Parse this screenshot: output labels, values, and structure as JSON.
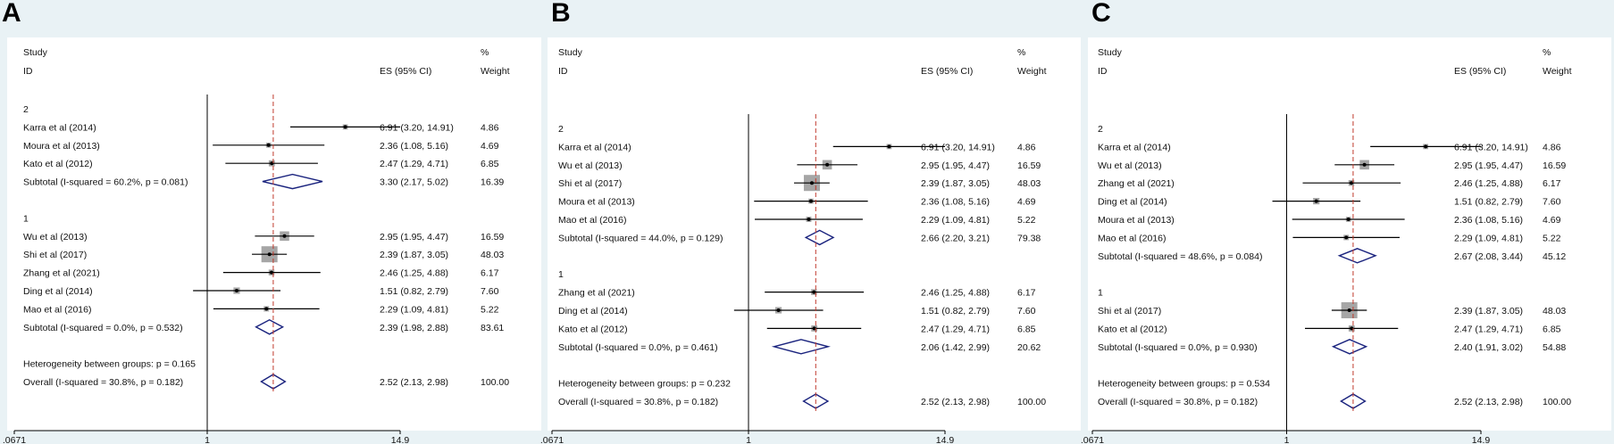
{
  "panels": [
    {
      "letter": "A",
      "header": {
        "study": "Study",
        "id": "ID",
        "es": "ES (95% CI)",
        "pct": "%",
        "weight": "Weight"
      },
      "rows": [
        {
          "kind": "group",
          "label": "2"
        },
        {
          "kind": "study",
          "label": "Karra et al (2014)",
          "es": 6.91,
          "lo": 3.2,
          "hi": 14.91,
          "text": "6.91 (3.20, 14.91)",
          "weight": "4.86",
          "w": 4.86
        },
        {
          "kind": "study",
          "label": "Moura et al (2013)",
          "es": 2.36,
          "lo": 1.08,
          "hi": 5.16,
          "text": "2.36 (1.08, 5.16)",
          "weight": "4.69",
          "w": 4.69
        },
        {
          "kind": "study",
          "label": "Kato et al (2012)",
          "es": 2.47,
          "lo": 1.29,
          "hi": 4.71,
          "text": "2.47 (1.29, 4.71)",
          "weight": "6.85",
          "w": 6.85
        },
        {
          "kind": "subtotal",
          "label": "Subtotal  (I-squared = 60.2%, p = 0.081)",
          "es": 3.3,
          "lo": 2.17,
          "hi": 5.02,
          "text": "3.30 (2.17, 5.02)",
          "weight": "16.39"
        },
        {
          "kind": "blank"
        },
        {
          "kind": "group",
          "label": "1"
        },
        {
          "kind": "study",
          "label": "Wu et al (2013)",
          "es": 2.95,
          "lo": 1.95,
          "hi": 4.47,
          "text": "2.95 (1.95, 4.47)",
          "weight": "16.59",
          "w": 16.59
        },
        {
          "kind": "study",
          "label": "Shi et al (2017)",
          "es": 2.39,
          "lo": 1.87,
          "hi": 3.05,
          "text": "2.39 (1.87, 3.05)",
          "weight": "48.03",
          "w": 48.03
        },
        {
          "kind": "study",
          "label": "Zhang et al (2021)",
          "es": 2.46,
          "lo": 1.25,
          "hi": 4.88,
          "text": "2.46 (1.25, 4.88)",
          "weight": "6.17",
          "w": 6.17
        },
        {
          "kind": "study",
          "label": "Ding et al (2014)",
          "es": 1.51,
          "lo": 0.82,
          "hi": 2.79,
          "text": "1.51 (0.82, 2.79)",
          "weight": "7.60",
          "w": 7.6
        },
        {
          "kind": "study",
          "label": "Mao et al (2016)",
          "es": 2.29,
          "lo": 1.09,
          "hi": 4.81,
          "text": "2.29 (1.09, 4.81)",
          "weight": "5.22",
          "w": 5.22
        },
        {
          "kind": "subtotal",
          "label": "Subtotal  (I-squared = 0.0%, p = 0.532)",
          "es": 2.39,
          "lo": 1.98,
          "hi": 2.88,
          "text": "2.39 (1.98, 2.88)",
          "weight": "83.61"
        },
        {
          "kind": "blank"
        },
        {
          "kind": "het",
          "label": "Heterogeneity between groups: p = 0.165"
        },
        {
          "kind": "overall",
          "label": "Overall  (I-squared = 30.8%, p = 0.182)",
          "es": 2.52,
          "lo": 2.13,
          "hi": 2.98,
          "text": "2.52 (2.13, 2.98)",
          "weight": "100.00"
        }
      ],
      "ticks": [
        ".0671",
        "1",
        "14.9"
      ]
    },
    {
      "letter": "B",
      "header": {
        "study": "Study",
        "id": "ID",
        "es": "ES (95% CI)",
        "pct": "%",
        "weight": "Weight"
      },
      "rows": [
        {
          "kind": "group",
          "label": "2"
        },
        {
          "kind": "study",
          "label": "Karra et al (2014)",
          "es": 6.91,
          "lo": 3.2,
          "hi": 14.91,
          "text": "6.91 (3.20, 14.91)",
          "weight": "4.86",
          "w": 4.86
        },
        {
          "kind": "study",
          "label": "Wu et al (2013)",
          "es": 2.95,
          "lo": 1.95,
          "hi": 4.47,
          "text": "2.95 (1.95, 4.47)",
          "weight": "16.59",
          "w": 16.59
        },
        {
          "kind": "study",
          "label": "Shi et al (2017)",
          "es": 2.39,
          "lo": 1.87,
          "hi": 3.05,
          "text": "2.39 (1.87, 3.05)",
          "weight": "48.03",
          "w": 48.03
        },
        {
          "kind": "study",
          "label": "Moura et al (2013)",
          "es": 2.36,
          "lo": 1.08,
          "hi": 5.16,
          "text": "2.36 (1.08, 5.16)",
          "weight": "4.69",
          "w": 4.69
        },
        {
          "kind": "study",
          "label": "Mao et al (2016)",
          "es": 2.29,
          "lo": 1.09,
          "hi": 4.81,
          "text": "2.29 (1.09, 4.81)",
          "weight": "5.22",
          "w": 5.22
        },
        {
          "kind": "subtotal",
          "label": "Subtotal  (I-squared = 44.0%, p = 0.129)",
          "es": 2.66,
          "lo": 2.2,
          "hi": 3.21,
          "text": "2.66 (2.20, 3.21)",
          "weight": "79.38"
        },
        {
          "kind": "blank"
        },
        {
          "kind": "group",
          "label": "1"
        },
        {
          "kind": "study",
          "label": "Zhang et al (2021)",
          "es": 2.46,
          "lo": 1.25,
          "hi": 4.88,
          "text": "2.46 (1.25, 4.88)",
          "weight": "6.17",
          "w": 6.17
        },
        {
          "kind": "study",
          "label": "Ding et al (2014)",
          "es": 1.51,
          "lo": 0.82,
          "hi": 2.79,
          "text": "1.51 (0.82, 2.79)",
          "weight": "7.60",
          "w": 7.6
        },
        {
          "kind": "study",
          "label": "Kato et al (2012)",
          "es": 2.47,
          "lo": 1.29,
          "hi": 4.71,
          "text": "2.47 (1.29, 4.71)",
          "weight": "6.85",
          "w": 6.85
        },
        {
          "kind": "subtotal",
          "label": "Subtotal  (I-squared = 0.0%, p = 0.461)",
          "es": 2.06,
          "lo": 1.42,
          "hi": 2.99,
          "text": "2.06 (1.42, 2.99)",
          "weight": "20.62"
        },
        {
          "kind": "blank"
        },
        {
          "kind": "het",
          "label": "Heterogeneity between groups: p = 0.232"
        },
        {
          "kind": "overall",
          "label": "Overall  (I-squared = 30.8%, p = 0.182)",
          "es": 2.52,
          "lo": 2.13,
          "hi": 2.98,
          "text": "2.52 (2.13, 2.98)",
          "weight": "100.00"
        }
      ],
      "ticks": [
        ".0671",
        "1",
        "14.9"
      ]
    },
    {
      "letter": "C",
      "header": {
        "study": "Study",
        "id": "ID",
        "es": "ES (95% CI)",
        "pct": "%",
        "weight": "Weight"
      },
      "rows": [
        {
          "kind": "group",
          "label": "2"
        },
        {
          "kind": "study",
          "label": "Karra et al (2014)",
          "es": 6.91,
          "lo": 3.2,
          "hi": 14.91,
          "text": "6.91 (3.20, 14.91)",
          "weight": "4.86",
          "w": 4.86
        },
        {
          "kind": "study",
          "label": "Wu et al (2013)",
          "es": 2.95,
          "lo": 1.95,
          "hi": 4.47,
          "text": "2.95 (1.95, 4.47)",
          "weight": "16.59",
          "w": 16.59
        },
        {
          "kind": "study",
          "label": "Zhang et al (2021)",
          "es": 2.46,
          "lo": 1.25,
          "hi": 4.88,
          "text": "2.46 (1.25, 4.88)",
          "weight": "6.17",
          "w": 6.17
        },
        {
          "kind": "study",
          "label": "Ding et al (2014)",
          "es": 1.51,
          "lo": 0.82,
          "hi": 2.79,
          "text": "1.51 (0.82, 2.79)",
          "weight": "7.60",
          "w": 7.6
        },
        {
          "kind": "study",
          "label": "Moura et al (2013)",
          "es": 2.36,
          "lo": 1.08,
          "hi": 5.16,
          "text": "2.36 (1.08, 5.16)",
          "weight": "4.69",
          "w": 4.69
        },
        {
          "kind": "study",
          "label": "Mao et al (2016)",
          "es": 2.29,
          "lo": 1.09,
          "hi": 4.81,
          "text": "2.29 (1.09, 4.81)",
          "weight": "5.22",
          "w": 5.22
        },
        {
          "kind": "subtotal",
          "label": "Subtotal  (I-squared = 48.6%, p = 0.084)",
          "es": 2.67,
          "lo": 2.08,
          "hi": 3.44,
          "text": "2.67 (2.08, 3.44)",
          "weight": "45.12"
        },
        {
          "kind": "blank"
        },
        {
          "kind": "group",
          "label": "1"
        },
        {
          "kind": "study",
          "label": "Shi et al (2017)",
          "es": 2.39,
          "lo": 1.87,
          "hi": 3.05,
          "text": "2.39 (1.87, 3.05)",
          "weight": "48.03",
          "w": 48.03
        },
        {
          "kind": "study",
          "label": "Kato et al (2012)",
          "es": 2.47,
          "lo": 1.29,
          "hi": 4.71,
          "text": "2.47 (1.29, 4.71)",
          "weight": "6.85",
          "w": 6.85
        },
        {
          "kind": "subtotal",
          "label": "Subtotal  (I-squared = 0.0%, p = 0.930)",
          "es": 2.4,
          "lo": 1.91,
          "hi": 3.02,
          "text": "2.40 (1.91, 3.02)",
          "weight": "54.88"
        },
        {
          "kind": "blank"
        },
        {
          "kind": "het",
          "label": "Heterogeneity between groups: p = 0.534"
        },
        {
          "kind": "overall",
          "label": "Overall  (I-squared = 30.8%, p = 0.182)",
          "es": 2.52,
          "lo": 2.13,
          "hi": 2.98,
          "text": "2.52 (2.13, 2.98)",
          "weight": "100.00"
        }
      ],
      "ticks": [
        ".0671",
        "1",
        "14.9"
      ]
    }
  ],
  "chart_data": {
    "type": "forest",
    "x_scale": "log",
    "xlim": [
      0.0671,
      14.9
    ],
    "null_line": 1,
    "reference_line": 2.52,
    "colors": {
      "background": "#e9f2f5",
      "plot_area": "#ffffff",
      "diamond": "#1a237e",
      "reference_line": "#c0392b",
      "weight_box": "#a6a6a6",
      "line": "#000000"
    }
  }
}
